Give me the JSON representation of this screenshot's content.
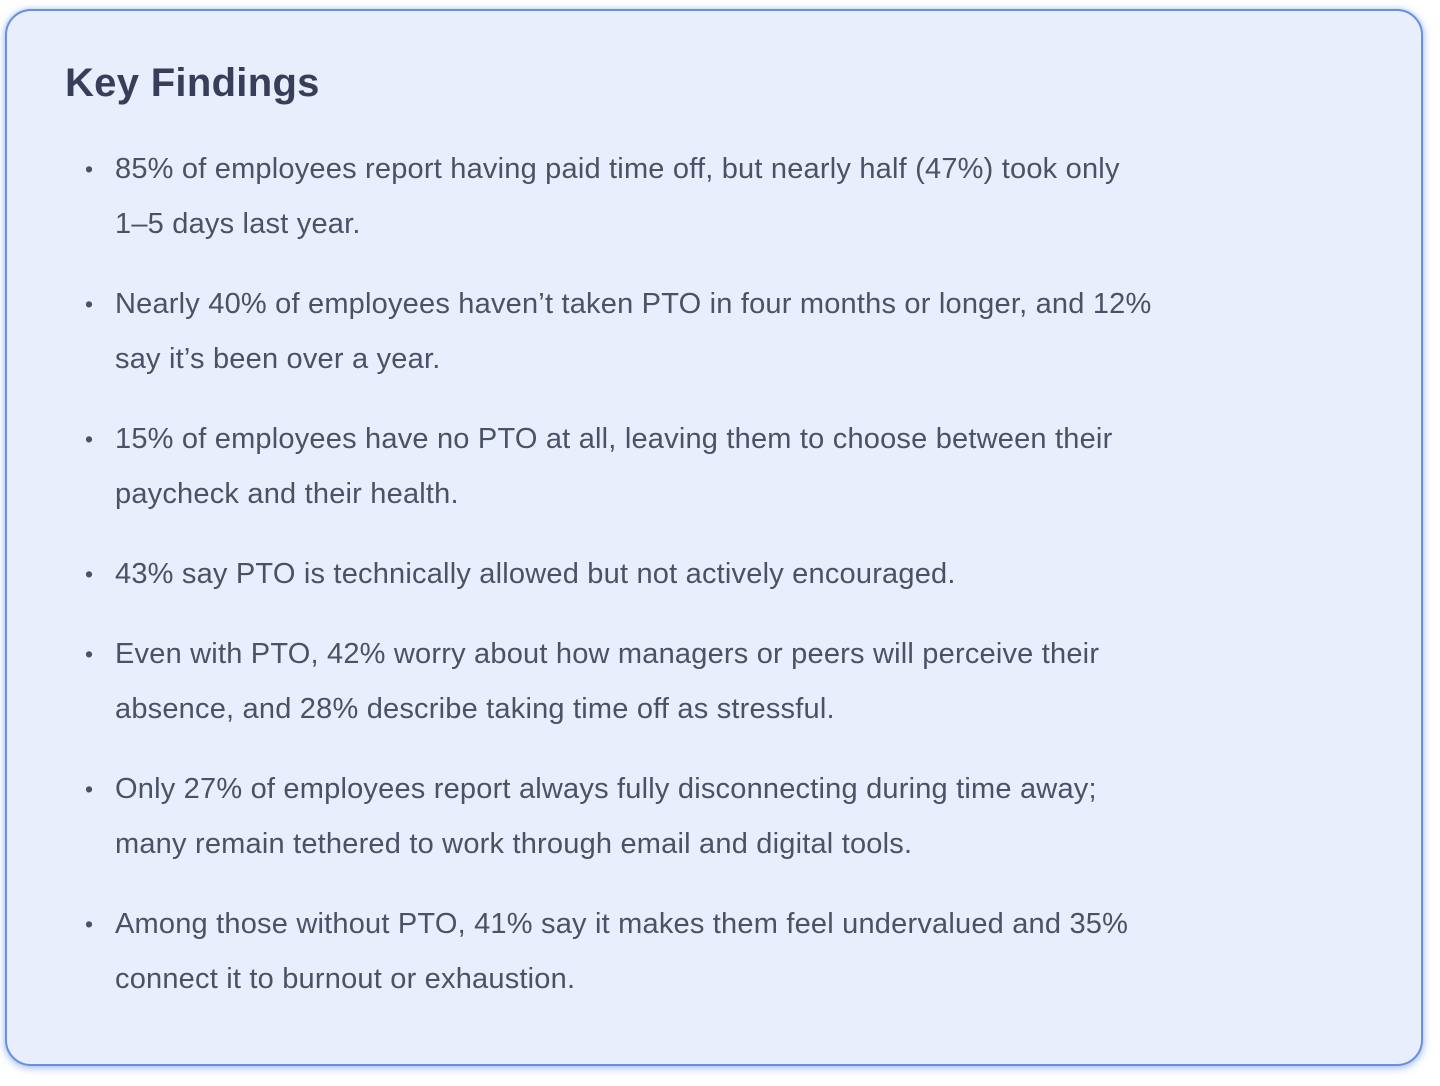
{
  "card": {
    "title": "Key Findings",
    "bullet_glyph": "•",
    "colors": {
      "page_background": "#FFFFFF",
      "card_background": "#E9EEFC",
      "card_border": "#6790DF",
      "title_text": "#383E59",
      "body_text": "#4B5166"
    },
    "findings": [
      {
        "text": "85% of employees report having paid time off, but nearly half (47%) took only\n1–5 days last year."
      },
      {
        "text": "Nearly 40% of employees haven’t taken PTO in four months or longer, and 12%\nsay it’s been over a year."
      },
      {
        "text": "15% of employees have no PTO at all, leaving them to choose between their\npaycheck and their health."
      },
      {
        "text": "43% say PTO is technically allowed but not actively encouraged."
      },
      {
        "text": "Even with PTO, 42% worry about how managers or peers will perceive their\nabsence, and 28% describe taking time off as stressful."
      },
      {
        "text": "Only 27% of employees report always fully disconnecting during time away;\nmany remain tethered to work through email and digital tools."
      },
      {
        "text": "Among those without PTO, 41% say it makes them feel undervalued and 35%\nconnect it to burnout or exhaustion."
      }
    ]
  }
}
